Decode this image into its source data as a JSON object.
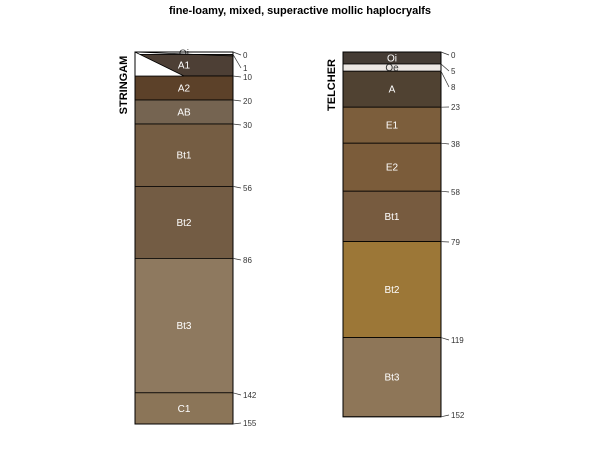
{
  "title": "fine-loamy, mixed, superactive mollic haplocryalfs",
  "profiles": [
    {
      "name": "STRINGAM",
      "horizons": [
        {
          "name": "Oi",
          "top": 0,
          "bottom": 1,
          "color": "#fdfdfd"
        },
        {
          "name": "A1",
          "top": 1,
          "bottom": 10,
          "color": "#4d3f35"
        },
        {
          "name": "A2",
          "top": 10,
          "bottom": 20,
          "color": "#5c4129"
        },
        {
          "name": "AB",
          "top": 20,
          "bottom": 30,
          "color": "#756451"
        },
        {
          "name": "Bt1",
          "top": 30,
          "bottom": 56,
          "color": "#755d43"
        },
        {
          "name": "Bt2",
          "top": 56,
          "bottom": 86,
          "color": "#735c44"
        },
        {
          "name": "Bt3",
          "top": 86,
          "bottom": 142,
          "color": "#8e795f"
        },
        {
          "name": "C1",
          "top": 142,
          "bottom": 155,
          "color": "#8b7558"
        }
      ],
      "depth_labels": [
        "0",
        "1",
        "10",
        "20",
        "30",
        "56",
        "86",
        "142",
        "155"
      ]
    },
    {
      "name": "TELCHER",
      "horizons": [
        {
          "name": "Oi",
          "top": 0,
          "bottom": 5,
          "color": "#443b34"
        },
        {
          "name": "Oe",
          "top": 5,
          "bottom": 8,
          "color": "#ece7e3"
        },
        {
          "name": "A",
          "top": 8,
          "bottom": 23,
          "color": "#504232"
        },
        {
          "name": "E1",
          "top": 23,
          "bottom": 38,
          "color": "#7c5e3c"
        },
        {
          "name": "E2",
          "top": 38,
          "bottom": 58,
          "color": "#7b5c3a"
        },
        {
          "name": "Bt1",
          "top": 58,
          "bottom": 79,
          "color": "#775b3f"
        },
        {
          "name": "Bt2",
          "top": 79,
          "bottom": 119,
          "color": "#9c7737"
        },
        {
          "name": "Bt3",
          "top": 119,
          "bottom": 152,
          "color": "#8e7658"
        }
      ],
      "depth_labels": [
        "0",
        "5",
        "8",
        "23",
        "38",
        "58",
        "79",
        "119",
        "152"
      ]
    }
  ]
}
